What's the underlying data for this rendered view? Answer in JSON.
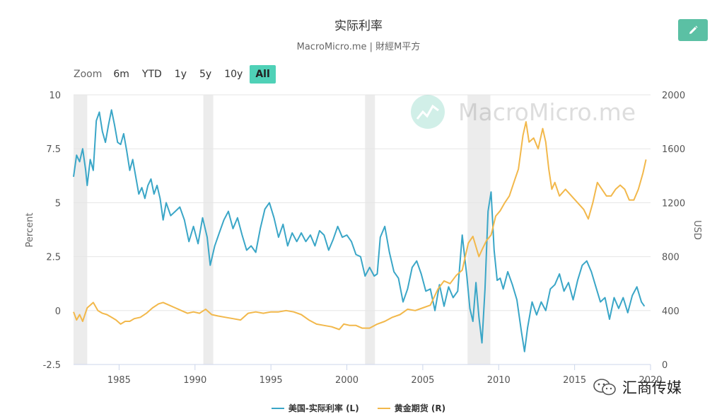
{
  "header": {
    "title": "实际利率",
    "subtitle": "MacroMicro.me | 財經M平方",
    "edit_icon": "pencil-icon"
  },
  "zoom": {
    "label": "Zoom",
    "buttons": [
      "6m",
      "YTD",
      "1y",
      "5y",
      "10y",
      "All"
    ],
    "active": "All"
  },
  "brand_watermark": "MacroMicro.me",
  "footer_watermark": "汇商传媒",
  "legend": [
    {
      "name": "美国-实际利率 (L)",
      "color": "#3aa6c7"
    },
    {
      "name": "黄金期货 (R)",
      "color": "#f2b84b"
    }
  ],
  "chart_data": {
    "type": "line",
    "xaxis": {
      "min": 1982.0,
      "max": 2020.0,
      "ticks": [
        1985,
        1990,
        1995,
        2000,
        2005,
        2010,
        2015,
        2020
      ]
    },
    "yaxis_left": {
      "label": "Percent",
      "min": -2.5,
      "max": 10,
      "ticks": [
        -2.5,
        0,
        2.5,
        5,
        7.5,
        10
      ],
      "tick_labels": [
        "-2.5",
        "0",
        "2.5",
        "5",
        "7.5",
        "10"
      ]
    },
    "yaxis_right": {
      "label": "USD",
      "min": 0,
      "max": 2000,
      "ticks": [
        0,
        400,
        800,
        1200,
        1600,
        2000
      ]
    },
    "recessions": [
      [
        1981.5,
        1982.9
      ],
      [
        1990.55,
        1991.2
      ],
      [
        2001.2,
        2001.85
      ],
      [
        2007.95,
        2009.45
      ]
    ],
    "series": [
      {
        "name": "美国-实际利率 (L)",
        "axis": "left",
        "color": "#3aa6c7",
        "x": [
          1982.0,
          1982.2,
          1982.4,
          1982.6,
          1982.8,
          1982.9,
          1983.1,
          1983.3,
          1983.5,
          1983.7,
          1983.9,
          1984.1,
          1984.3,
          1984.5,
          1984.7,
          1984.9,
          1985.1,
          1985.3,
          1985.5,
          1985.7,
          1985.9,
          1986.1,
          1986.3,
          1986.5,
          1986.7,
          1986.9,
          1987.1,
          1987.3,
          1987.5,
          1987.7,
          1987.9,
          1988.1,
          1988.4,
          1988.7,
          1989.0,
          1989.3,
          1989.6,
          1989.9,
          1990.2,
          1990.5,
          1990.8,
          1991.0,
          1991.3,
          1991.6,
          1991.9,
          1992.2,
          1992.5,
          1992.8,
          1993.1,
          1993.4,
          1993.7,
          1994.0,
          1994.3,
          1994.6,
          1994.9,
          1995.2,
          1995.5,
          1995.8,
          1996.1,
          1996.4,
          1996.7,
          1997.0,
          1997.3,
          1997.6,
          1997.9,
          1998.2,
          1998.5,
          1998.8,
          1999.1,
          1999.4,
          1999.7,
          2000.0,
          2000.3,
          2000.6,
          2000.9,
          2001.2,
          2001.5,
          2001.8,
          2002.0,
          2002.2,
          2002.5,
          2002.8,
          2003.1,
          2003.4,
          2003.7,
          2004.0,
          2004.3,
          2004.6,
          2004.9,
          2005.2,
          2005.5,
          2005.8,
          2006.1,
          2006.4,
          2006.7,
          2007.0,
          2007.3,
          2007.6,
          2007.9,
          2008.1,
          2008.3,
          2008.5,
          2008.7,
          2008.9,
          2009.1,
          2009.3,
          2009.5,
          2009.7,
          2009.9,
          2010.1,
          2010.3,
          2010.6,
          2010.9,
          2011.2,
          2011.5,
          2011.7,
          2011.9,
          2012.2,
          2012.5,
          2012.8,
          2013.1,
          2013.4,
          2013.7,
          2014.0,
          2014.3,
          2014.6,
          2014.9,
          2015.2,
          2015.5,
          2015.8,
          2016.1,
          2016.4,
          2016.7,
          2017.0,
          2017.3,
          2017.6,
          2017.9,
          2018.2,
          2018.5,
          2018.8,
          2019.1,
          2019.4,
          2019.6
        ],
        "values": [
          6.2,
          7.2,
          6.9,
          7.5,
          6.5,
          5.8,
          7.0,
          6.5,
          8.8,
          9.2,
          8.3,
          7.8,
          8.6,
          9.3,
          8.6,
          7.8,
          7.7,
          8.2,
          7.4,
          6.5,
          7.0,
          6.2,
          5.4,
          5.7,
          5.2,
          5.8,
          6.1,
          5.4,
          5.8,
          5.2,
          4.2,
          5.0,
          4.4,
          4.6,
          4.8,
          4.2,
          3.2,
          3.9,
          3.1,
          4.3,
          3.4,
          2.1,
          3.0,
          3.6,
          4.2,
          4.6,
          3.8,
          4.3,
          3.5,
          2.8,
          3.0,
          2.7,
          3.8,
          4.7,
          5.0,
          4.3,
          3.4,
          4.0,
          3.0,
          3.6,
          3.2,
          3.6,
          3.2,
          3.5,
          3.0,
          3.7,
          3.5,
          2.8,
          3.3,
          3.9,
          3.4,
          3.5,
          3.2,
          2.6,
          2.5,
          1.6,
          2.0,
          1.6,
          1.7,
          3.4,
          3.9,
          2.7,
          1.8,
          1.5,
          0.4,
          1.0,
          2.0,
          2.3,
          1.7,
          0.9,
          1.0,
          0.0,
          1.2,
          0.2,
          1.1,
          0.6,
          0.9,
          3.5,
          1.6,
          0.1,
          -0.5,
          1.3,
          -0.3,
          -1.5,
          1.0,
          4.6,
          5.5,
          2.8,
          1.4,
          1.5,
          1.0,
          1.8,
          1.2,
          0.5,
          -1.0,
          -1.9,
          -0.8,
          0.4,
          -0.2,
          0.4,
          0.0,
          1.0,
          1.2,
          1.7,
          0.9,
          1.3,
          0.5,
          1.4,
          2.1,
          2.3,
          1.8,
          1.1,
          0.4,
          0.6,
          -0.4,
          0.6,
          0.1,
          0.6,
          -0.1,
          0.7,
          1.1,
          0.4,
          0.2
        ]
      },
      {
        "name": "黄金期货 (R)",
        "axis": "right",
        "color": "#f2b84b",
        "x": [
          1982.0,
          1982.2,
          1982.4,
          1982.6,
          1982.9,
          1983.1,
          1983.3,
          1983.6,
          1983.9,
          1984.2,
          1984.5,
          1984.8,
          1985.1,
          1985.4,
          1985.7,
          1986.0,
          1986.4,
          1986.8,
          1987.2,
          1987.6,
          1987.9,
          1988.3,
          1988.7,
          1989.1,
          1989.5,
          1989.9,
          1990.3,
          1990.7,
          1991.1,
          1991.5,
          1992.0,
          1992.5,
          1993.0,
          1993.5,
          1994.0,
          1994.5,
          1995.0,
          1995.5,
          1996.0,
          1996.5,
          1997.0,
          1997.5,
          1998.0,
          1998.5,
          1999.0,
          1999.5,
          1999.8,
          2000.2,
          2000.6,
          2001.0,
          2001.5,
          2002.0,
          2002.5,
          2003.0,
          2003.5,
          2004.0,
          2004.5,
          2005.0,
          2005.5,
          2006.0,
          2006.4,
          2006.8,
          2007.2,
          2007.6,
          2008.0,
          2008.3,
          2008.7,
          2008.9,
          2009.2,
          2009.5,
          2009.8,
          2010.1,
          2010.4,
          2010.7,
          2011.0,
          2011.3,
          2011.6,
          2011.8,
          2012.0,
          2012.3,
          2012.6,
          2012.9,
          2013.1,
          2013.3,
          2013.5,
          2013.7,
          2014.0,
          2014.4,
          2014.8,
          2015.2,
          2015.6,
          2015.9,
          2016.2,
          2016.5,
          2016.8,
          2017.1,
          2017.4,
          2017.7,
          2018.0,
          2018.3,
          2018.6,
          2018.9,
          2019.2,
          2019.5,
          2019.7
        ],
        "values": [
          390,
          330,
          370,
          320,
          420,
          440,
          460,
          400,
          380,
          370,
          350,
          330,
          300,
          320,
          320,
          340,
          350,
          380,
          420,
          450,
          460,
          440,
          420,
          400,
          380,
          390,
          380,
          410,
          370,
          360,
          350,
          340,
          330,
          380,
          390,
          380,
          390,
          390,
          400,
          390,
          370,
          330,
          300,
          290,
          280,
          260,
          300,
          290,
          290,
          270,
          270,
          300,
          320,
          350,
          370,
          410,
          400,
          420,
          440,
          560,
          620,
          600,
          660,
          700,
          900,
          950,
          800,
          850,
          920,
          960,
          1100,
          1140,
          1200,
          1250,
          1350,
          1450,
          1700,
          1800,
          1650,
          1680,
          1600,
          1750,
          1650,
          1450,
          1300,
          1350,
          1250,
          1300,
          1250,
          1200,
          1150,
          1080,
          1200,
          1350,
          1300,
          1250,
          1250,
          1300,
          1330,
          1300,
          1220,
          1220,
          1300,
          1420,
          1520
        ]
      }
    ]
  }
}
